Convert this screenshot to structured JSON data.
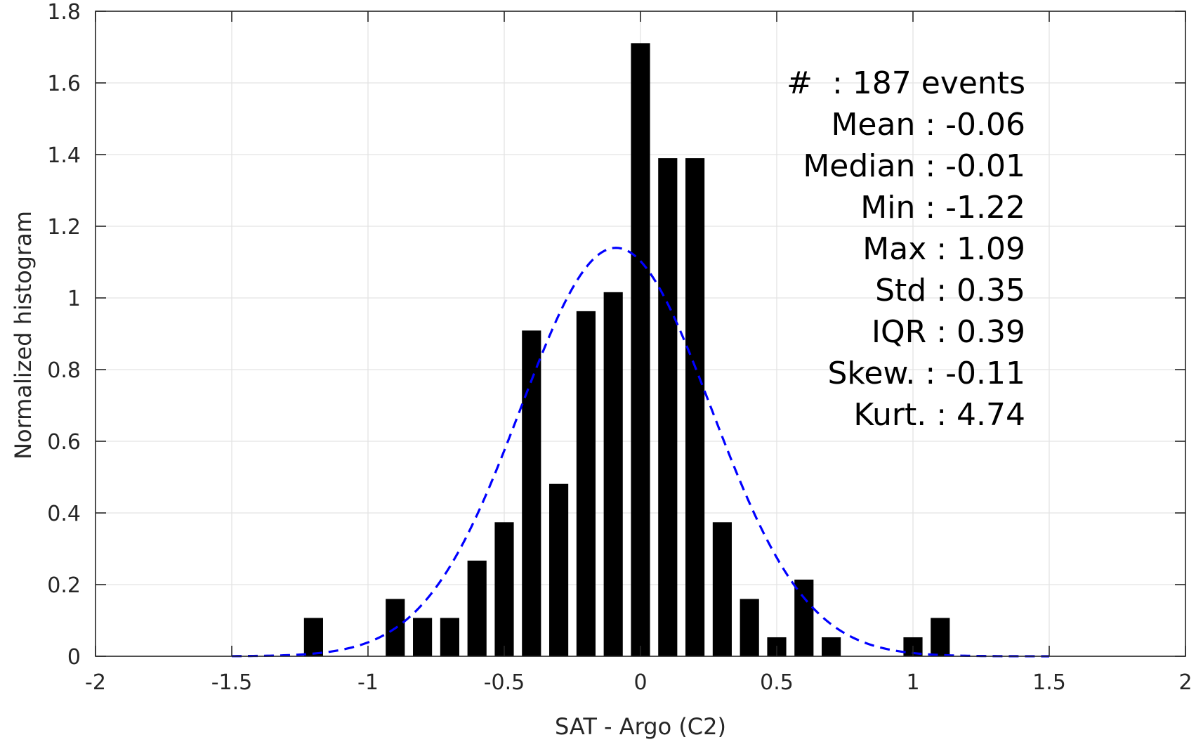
{
  "chart_data": {
    "type": "bar",
    "xlabel": "SAT - Argo (C2)",
    "ylabel": "Normalized histogram",
    "xlim": [
      -2,
      2
    ],
    "ylim": [
      0,
      1.8
    ],
    "xticks": [
      -2,
      -1.5,
      -1,
      -0.5,
      0,
      0.5,
      1,
      1.5,
      2
    ],
    "yticks": [
      0,
      0.2,
      0.4,
      0.6,
      0.8,
      1,
      1.2,
      1.4,
      1.6,
      1.8
    ],
    "xtick_labels": [
      "-2",
      "-1.5",
      "-1",
      "-0.5",
      "0",
      "0.5",
      "1",
      "1.5",
      "2"
    ],
    "ytick_labels": [
      "0",
      "0.2",
      "0.4",
      "0.6",
      "0.8",
      "1",
      "1.2",
      "1.4",
      "1.6",
      "1.8"
    ],
    "grid": true,
    "bar_width": 0.07,
    "bars": [
      {
        "x": -1.2,
        "value": 0.107
      },
      {
        "x": -0.9,
        "value": 0.16
      },
      {
        "x": -0.8,
        "value": 0.107
      },
      {
        "x": -0.7,
        "value": 0.107
      },
      {
        "x": -0.6,
        "value": 0.267
      },
      {
        "x": -0.5,
        "value": 0.374
      },
      {
        "x": -0.4,
        "value": 0.909
      },
      {
        "x": -0.3,
        "value": 0.481
      },
      {
        "x": -0.2,
        "value": 0.963
      },
      {
        "x": -0.1,
        "value": 1.016
      },
      {
        "x": 0.0,
        "value": 1.711
      },
      {
        "x": 0.1,
        "value": 1.39
      },
      {
        "x": 0.2,
        "value": 1.39
      },
      {
        "x": 0.3,
        "value": 0.374
      },
      {
        "x": 0.4,
        "value": 0.16
      },
      {
        "x": 0.5,
        "value": 0.053
      },
      {
        "x": 0.6,
        "value": 0.214
      },
      {
        "x": 0.7,
        "value": 0.053
      },
      {
        "x": 1.0,
        "value": 0.053
      },
      {
        "x": 1.1,
        "value": 0.107
      }
    ],
    "fit_curve": {
      "style": "dashed",
      "color": "#0000ff",
      "mean": -0.09,
      "std": 0.35,
      "x_range": [
        -1.5,
        1.5
      ]
    },
    "bar_color": "#000000",
    "stats_lines": [
      "#  : 187 events",
      "Mean : -0.06",
      "Median : -0.01",
      "Min : -1.22",
      "Max : 1.09",
      "Std : 0.35",
      "IQR : 0.39",
      "Skew. : -0.11",
      "Kurt. : 4.74"
    ]
  }
}
